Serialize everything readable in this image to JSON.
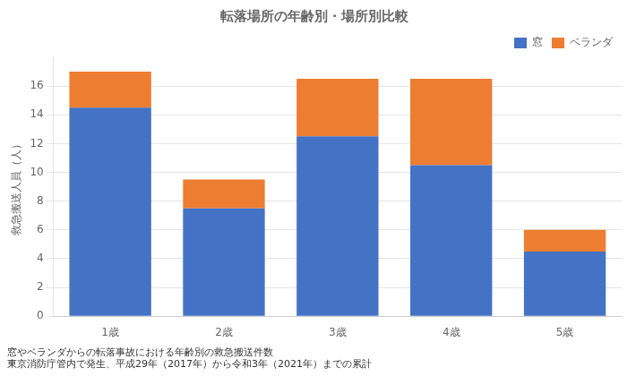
{
  "chart_data": {
    "type": "bar",
    "title": "転落場所の年齢別・場所別比較",
    "y_label": "救急搬送人員（人）",
    "categories": [
      "1歳",
      "2歳",
      "3歳",
      "4歳",
      "5歳"
    ],
    "series": [
      {
        "name": "窓",
        "color": "#4472C4",
        "values": [
          14.5,
          7.5,
          12.5,
          10.5,
          4.5
        ]
      },
      {
        "name": "ベランダ",
        "color": "#ED7D31",
        "values": [
          2.5,
          2.0,
          4.0,
          6.0,
          1.5
        ]
      }
    ],
    "stacked": true,
    "ylim": [
      0,
      18
    ],
    "yticks": [
      0,
      2,
      4,
      6,
      8,
      10,
      12,
      14,
      16
    ],
    "grid": "y",
    "legend": "upper right",
    "notes": [
      "窓やベランダからの転落事故における年齢別の救急搬送件数",
      "東京消防庁管内で発生、平成29年（2017年）から令和3年（2021年）までの累計"
    ]
  }
}
